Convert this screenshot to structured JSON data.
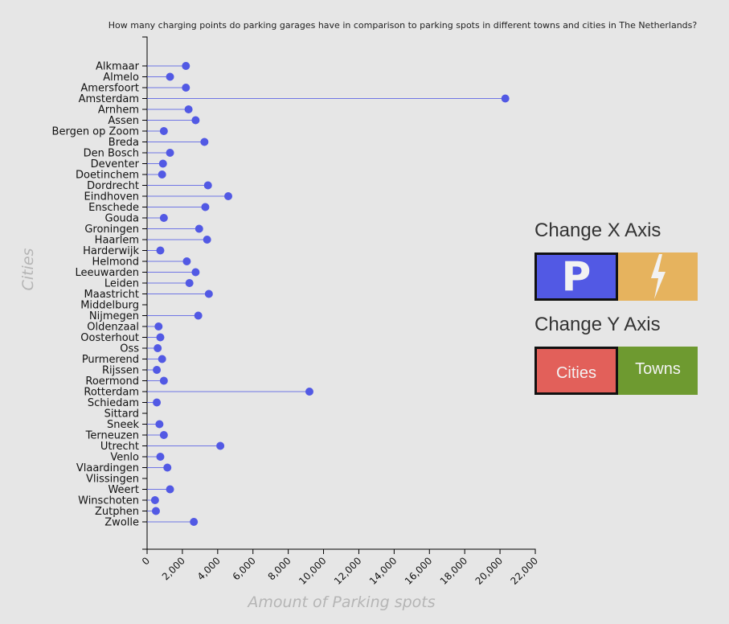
{
  "chart_data": {
    "type": "lollipop",
    "title": "How many charging points do parking garages have in comparison to parking spots in different towns and cities in The Netherlands?",
    "xlabel": "Amount of Parking spots",
    "ylabel": "Cities",
    "xlim": [
      0,
      22000
    ],
    "xticks": [
      0,
      2000,
      4000,
      6000,
      8000,
      10000,
      12000,
      14000,
      16000,
      18000,
      20000,
      22000
    ],
    "xtick_labels": [
      "0",
      "2,000",
      "4,000",
      "6,000",
      "8,000",
      "10,000",
      "12,000",
      "14,000",
      "16,000",
      "18,000",
      "20,000",
      "22,000"
    ],
    "color": "#5259e4",
    "categories": [
      "Alkmaar",
      "Almelo",
      "Amersfoort",
      "Amsterdam",
      "Arnhem",
      "Assen",
      "Bergen op Zoom",
      "Breda",
      "Den Bosch",
      "Deventer",
      "Doetinchem",
      "Dordrecht",
      "Eindhoven",
      "Enschede",
      "Gouda",
      "Groningen",
      "Haarlem",
      "Harderwijk",
      "Helmond",
      "Leeuwarden",
      "Leiden",
      "Maastricht",
      "Middelburg",
      "Nijmegen",
      "Oldenzaal",
      "Oosterhout",
      "Oss",
      "Purmerend",
      "Rijssen",
      "Roermond",
      "Rotterdam",
      "Schiedam",
      "Sittard",
      "Sneek",
      "Terneuzen",
      "Utrecht",
      "Venlo",
      "Vlaardingen",
      "Vlissingen",
      "Weert",
      "Winschoten",
      "Zutphen",
      "Zwolle"
    ],
    "values": [
      2200,
      1300,
      2200,
      20300,
      2350,
      2750,
      950,
      3250,
      1300,
      900,
      850,
      3450,
      4600,
      3300,
      950,
      2950,
      3400,
      750,
      2250,
      2750,
      2400,
      3500,
      null,
      2900,
      650,
      750,
      600,
      850,
      550,
      950,
      9200,
      550,
      null,
      700,
      950,
      4150,
      750,
      1150,
      null,
      1300,
      450,
      500,
      2650
    ]
  },
  "controls": {
    "x_axis_heading": "Change X Axis",
    "y_axis_heading": "Change Y Axis",
    "parking_button_icon": "parking-p-icon",
    "charging_button_icon": "lightning-bolt-icon",
    "cities_label": "Cities",
    "towns_label": "Towns",
    "colors": {
      "parking": "#5259e4",
      "charging": "#e6b35e",
      "cities": "#e2605a",
      "towns": "#6e9a30"
    }
  }
}
